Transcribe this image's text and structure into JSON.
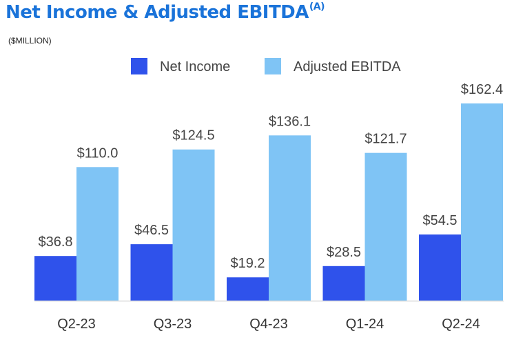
{
  "title": "Net Income & Adjusted EBITDA",
  "title_note": "(A)",
  "unit_label": "($MILLION)",
  "colors": {
    "net_income": "#2f52eb",
    "adjusted_ebitda": "#7fc4f5",
    "title": "#1a73d9"
  },
  "chart_data": {
    "type": "bar",
    "title": "Net Income & Adjusted EBITDA",
    "ylabel": "",
    "xlabel": "",
    "unit": "($MILLION)",
    "legend_position": "top",
    "grid": false,
    "categories": [
      "Q2-23",
      "Q3-23",
      "Q4-23",
      "Q1-24",
      "Q2-24"
    ],
    "series": [
      {
        "name": "Net Income",
        "values": [
          36.8,
          46.5,
          19.2,
          28.5,
          54.5
        ],
        "labels": [
          "$36.8",
          "$46.5",
          "$19.2",
          "$28.5",
          "$54.5"
        ]
      },
      {
        "name": "Adjusted EBITDA",
        "values": [
          110.0,
          124.5,
          136.1,
          121.7,
          162.4
        ],
        "labels": [
          "$110.0",
          "$124.5",
          "$136.1",
          "$121.7",
          "$162.4"
        ]
      }
    ],
    "ylim": [
      0,
      170
    ]
  }
}
